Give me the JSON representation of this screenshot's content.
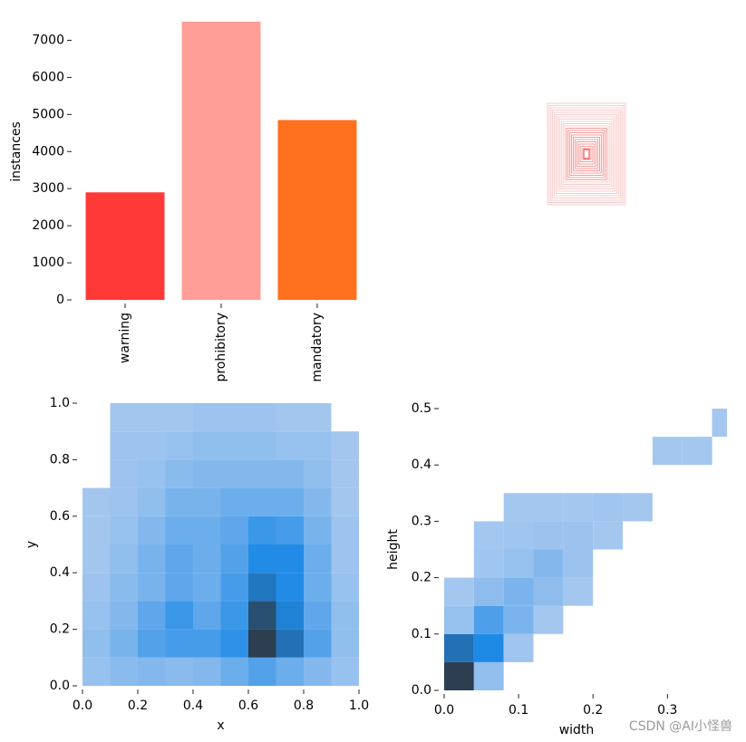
{
  "chart_data": [
    {
      "type": "bar",
      "ylabel": "instances",
      "categories": [
        "warning",
        "prohibitory",
        "mandatory"
      ],
      "values": [
        2900,
        7500,
        4850
      ],
      "colors": [
        "#ff3838",
        "#ff9d97",
        "#ff701f"
      ],
      "ylim": [
        0,
        7500
      ],
      "yticks": [
        0,
        1000,
        2000,
        3000,
        4000,
        5000,
        6000,
        7000
      ]
    },
    {
      "type": "hist2d",
      "xlabel": "x",
      "ylabel": "y",
      "xlim": [
        0,
        1
      ],
      "ylim": [
        0,
        1
      ],
      "xticks": [
        {
          "value": 0,
          "label": "0.0"
        },
        0.2,
        0.4,
        0.6,
        0.8,
        {
          "value": 1,
          "label": "1.0"
        }
      ],
      "yticks": [
        {
          "value": 0,
          "label": "0.0"
        },
        0.2,
        0.4,
        0.6,
        0.8,
        {
          "value": 1,
          "label": "1.0"
        }
      ],
      "x_bins": [
        0,
        0.1,
        0.2,
        0.3,
        0.4,
        0.5,
        0.6,
        0.7,
        0.8,
        0.9,
        1
      ],
      "y_bins": [
        0,
        0.1,
        0.2,
        0.3,
        0.4,
        0.5,
        0.6,
        0.7,
        0.8,
        0.9,
        1
      ],
      "counts": [
        [
          3,
          5,
          6,
          5,
          6,
          10,
          14,
          10,
          6,
          3
        ],
        [
          4,
          8,
          14,
          16,
          16,
          20,
          45,
          30,
          14,
          4
        ],
        [
          3,
          6,
          12,
          18,
          12,
          18,
          40,
          25,
          12,
          4
        ],
        [
          2,
          5,
          8,
          12,
          10,
          16,
          28,
          22,
          10,
          3
        ],
        [
          1,
          4,
          8,
          12,
          10,
          14,
          22,
          22,
          10,
          2
        ],
        [
          1,
          3,
          6,
          10,
          10,
          12,
          18,
          16,
          8,
          2
        ],
        [
          1,
          2,
          4,
          8,
          8,
          10,
          10,
          10,
          6,
          1
        ],
        [
          0,
          2,
          3,
          5,
          6,
          6,
          6,
          6,
          4,
          1
        ],
        [
          0,
          2,
          2,
          3,
          4,
          4,
          4,
          3,
          3,
          1
        ],
        [
          0,
          1,
          1,
          1,
          2,
          2,
          2,
          1,
          1,
          0
        ]
      ],
      "colors": [
        "#a9c9ef",
        "#1f8ae6",
        "#2c3e50"
      ]
    },
    {
      "type": "hist2d",
      "xlabel": "width",
      "ylabel": "height",
      "xlim": [
        0,
        0.38
      ],
      "ylim": [
        0,
        0.5
      ],
      "xticks": [
        {
          "value": 0,
          "label": "0.0"
        },
        0.1,
        0.2,
        0.3
      ],
      "yticks": [
        {
          "value": 0,
          "label": "0.0"
        },
        0.1,
        0.2,
        0.3,
        0.4,
        0.5
      ],
      "x_bins": [
        0,
        0.04,
        0.08,
        0.12,
        0.16,
        0.2,
        0.24,
        0.28,
        0.32,
        0.36,
        0.38
      ],
      "y_bins": [
        0,
        0.05,
        0.1,
        0.15,
        0.2,
        0.25,
        0.3,
        0.35,
        0.4,
        0.45,
        0.5
      ],
      "counts": [
        [
          60,
          5,
          0,
          0,
          0,
          0,
          0,
          0,
          0,
          0
        ],
        [
          40,
          30,
          2,
          0,
          0,
          0,
          0,
          0,
          0,
          0
        ],
        [
          4,
          20,
          10,
          1,
          0,
          0,
          0,
          0,
          0,
          0
        ],
        [
          1,
          6,
          10,
          6,
          1,
          0,
          0,
          0,
          0,
          0
        ],
        [
          0,
          2,
          4,
          8,
          3,
          0,
          0,
          0,
          0,
          0
        ],
        [
          0,
          1,
          2,
          3,
          3,
          1,
          0,
          0,
          0,
          0
        ],
        [
          0,
          0,
          1,
          1,
          1,
          2,
          1,
          0,
          0,
          0
        ],
        [
          0,
          0,
          0,
          0,
          0,
          0,
          0,
          0,
          0,
          0
        ],
        [
          0,
          0,
          0,
          0,
          0,
          0,
          0,
          1,
          1,
          0
        ],
        [
          0,
          0,
          0,
          0,
          0,
          0,
          0,
          0,
          0,
          1
        ]
      ],
      "colors": [
        "#a9c9ef",
        "#1f8ae6",
        "#2c3e50"
      ]
    }
  ],
  "watermark": "CSDN @AI小怪兽"
}
